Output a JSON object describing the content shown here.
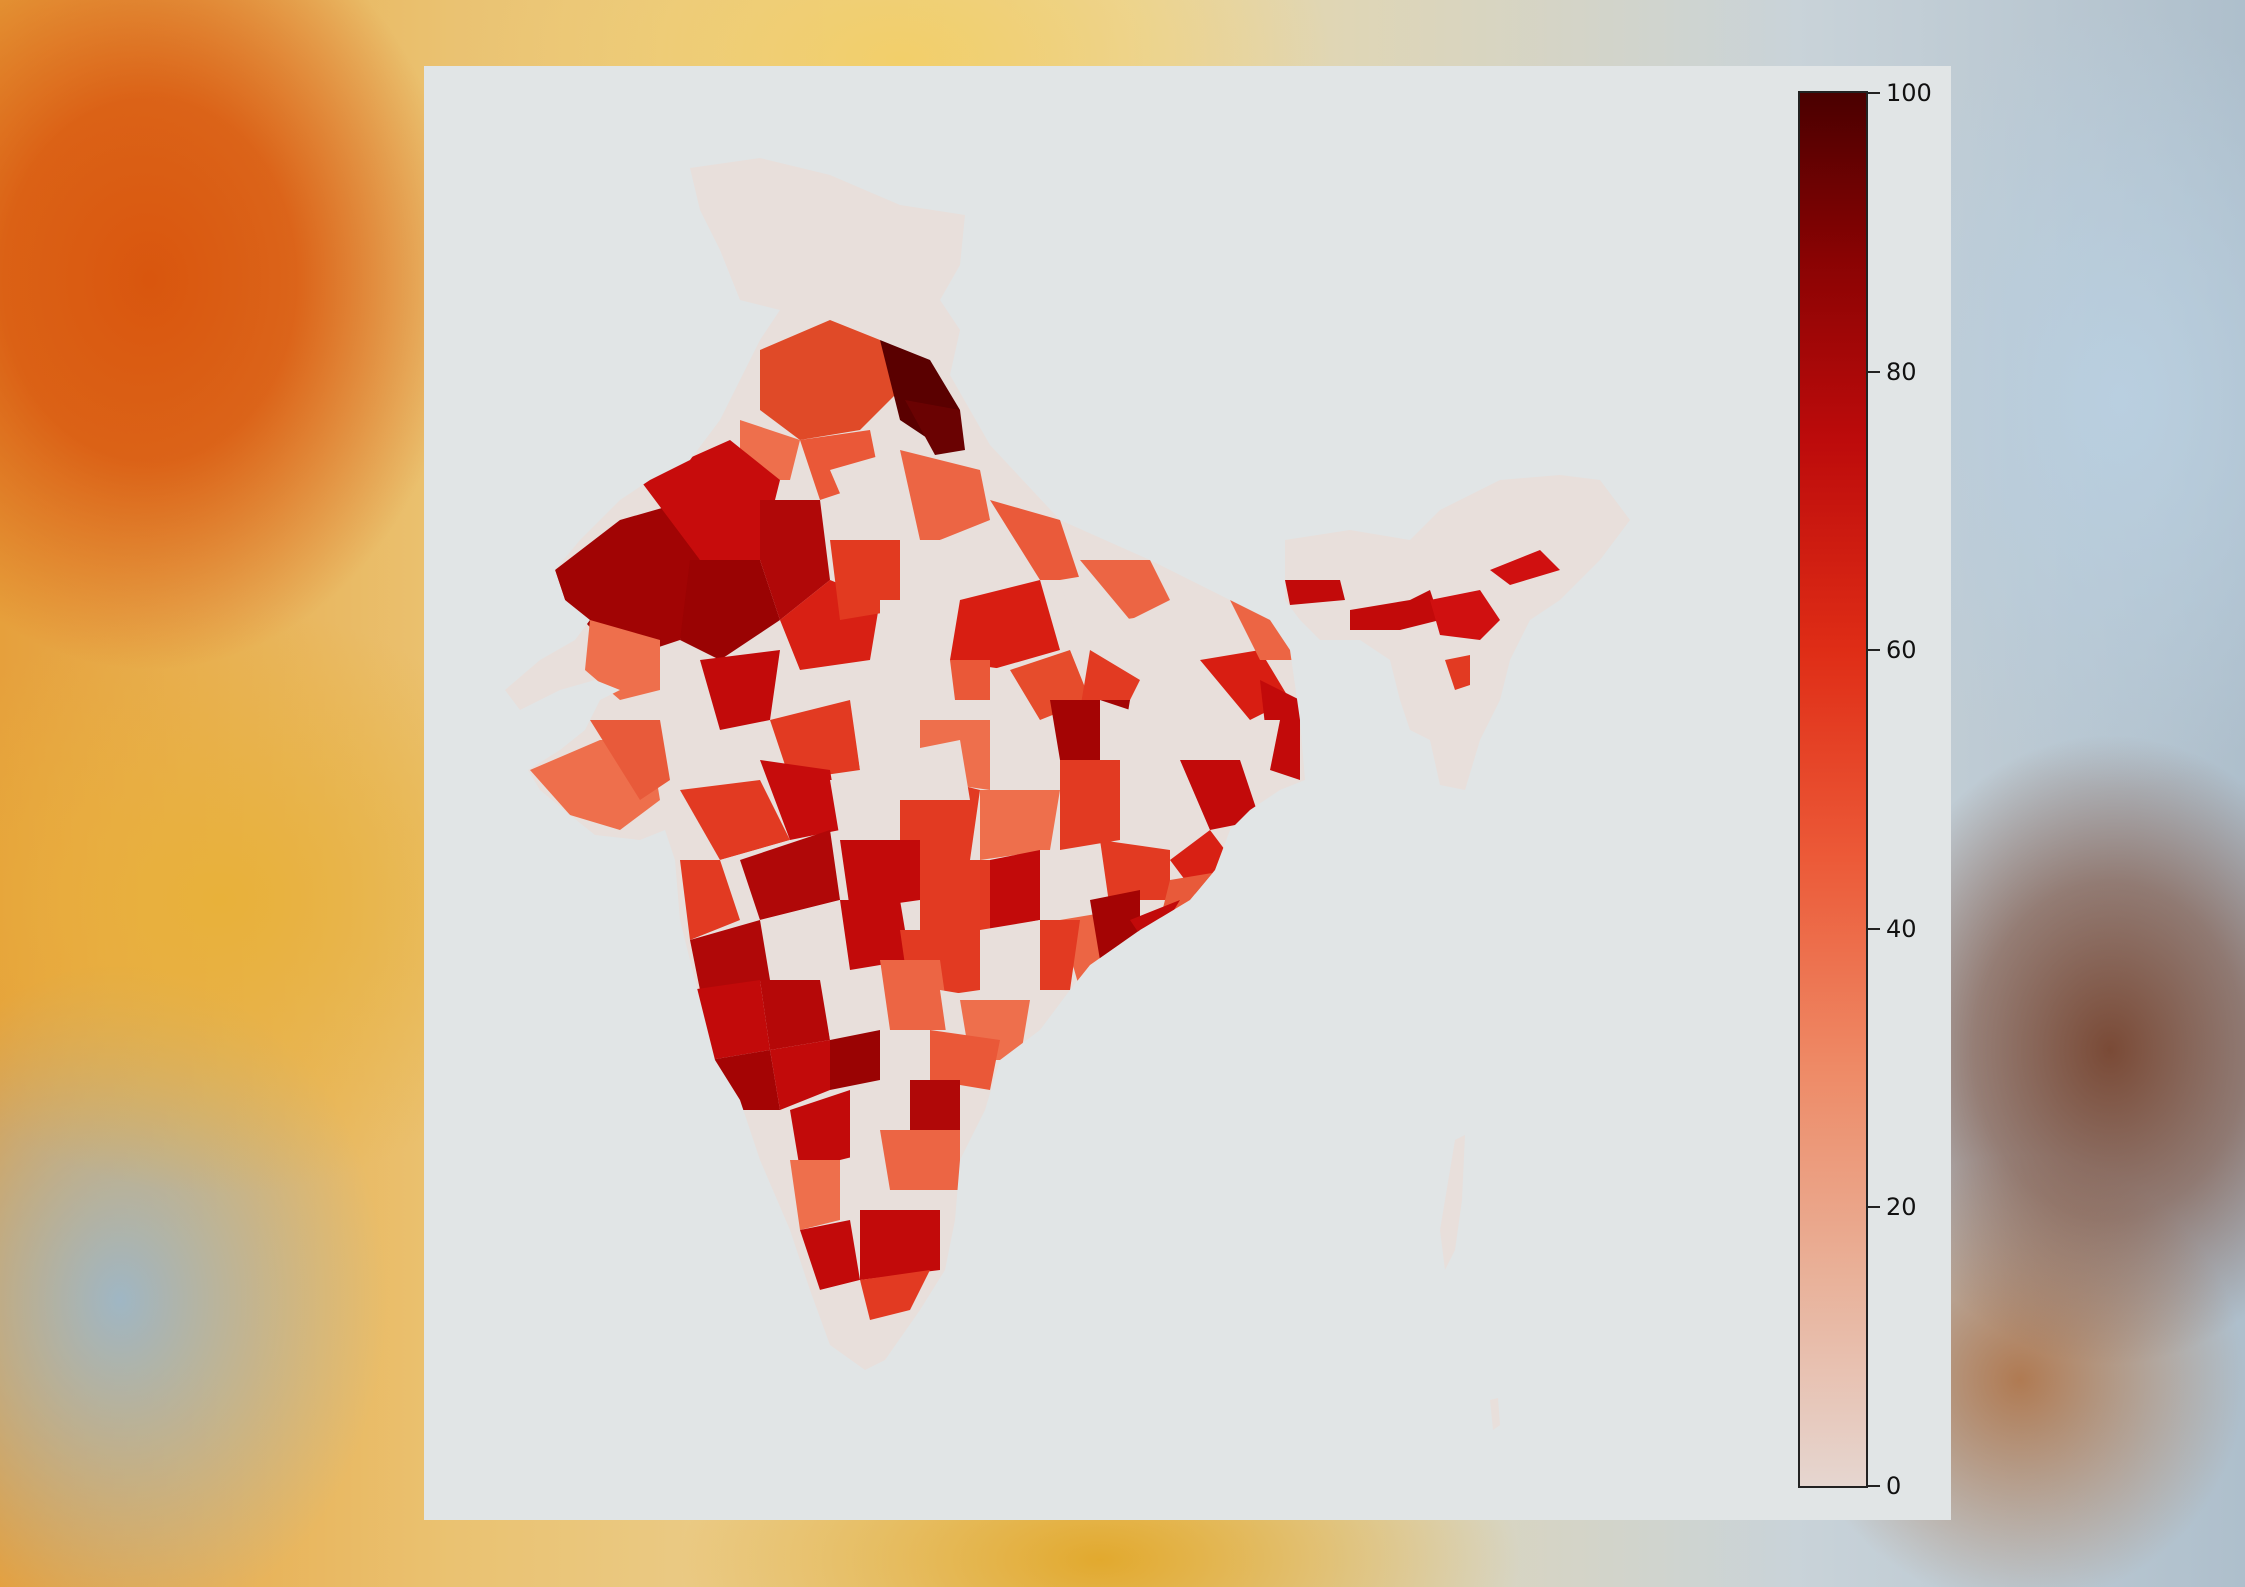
{
  "chart_data": {
    "type": "choropleth",
    "colormap": "Reds",
    "colorbar": {
      "min": 0,
      "max": 100,
      "ticks": [
        "0",
        "20",
        "40",
        "60",
        "80",
        "100"
      ],
      "tick_values": [
        0,
        20,
        40,
        60,
        80,
        100
      ]
    },
    "no_data_color": "#e8dfdb",
    "panel_background": "#e1e5e6"
  }
}
